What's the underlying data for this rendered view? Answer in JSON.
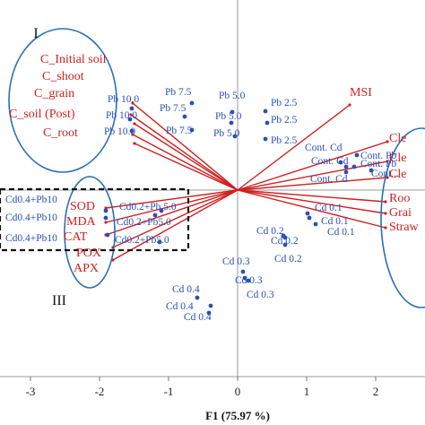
{
  "chart_data": {
    "type": "biplot",
    "xlabel": "F1 (75.97 %)",
    "ylabel": "",
    "x_ticks": [
      "-3",
      "-2",
      "-1",
      "0",
      "1",
      "2"
    ],
    "grid": false,
    "group_labels": [
      "I",
      "III"
    ],
    "variables": [
      {
        "label": "C_Initial soil",
        "group": "I"
      },
      {
        "label": "C_shoot",
        "group": "I"
      },
      {
        "label": "C_grain",
        "group": "I"
      },
      {
        "label": "C_soil (Post)",
        "group": "I"
      },
      {
        "label": "C_root",
        "group": "I"
      },
      {
        "label": "MSI"
      },
      {
        "label": "Cle"
      },
      {
        "label": "Cle"
      },
      {
        "label": "Cle"
      },
      {
        "label": "Roo"
      },
      {
        "label": "Grai"
      },
      {
        "label": "Straw"
      },
      {
        "label": "SOD",
        "group": "III"
      },
      {
        "label": "MDA",
        "group": "III"
      },
      {
        "label": "CAT",
        "group": "III"
      },
      {
        "label": "POX",
        "group": "III"
      },
      {
        "label": "APX",
        "group": "III"
      }
    ],
    "observations": [
      "Pb 10.0",
      "Pb 10.0",
      "Pb 10.0",
      "Pb 7.5",
      "Pb 7.5",
      "Pb 7.5",
      "Pb 5.0",
      "Pb 5.0",
      "Pb 5.0",
      "Pb 2.5",
      "Pb 2.5",
      "Pb 2.5",
      "Cont. Cd",
      "Cont. Cd",
      "Cont. Cd",
      "Cont. Pb",
      "Cont. Pb",
      "Cont...",
      "Cd 0.1",
      "Cd 0.1",
      "Cd 0.1",
      "Cd 0.2",
      "Cd 0.2",
      "Cd 0.2",
      "Cd 0.3",
      "Cd 0.3",
      "Cd 0.3",
      "Cd 0.4",
      "Cd 0.4",
      "Cd 0.4",
      "Cd0.2+Pb 5.0",
      "Cd0.2+Pb5.0",
      "Cd0.2+Pb5.0",
      "Cd0.4+Pb10",
      "Cd0.4+Pb10",
      "Cd0.4+Pb10"
    ]
  }
}
